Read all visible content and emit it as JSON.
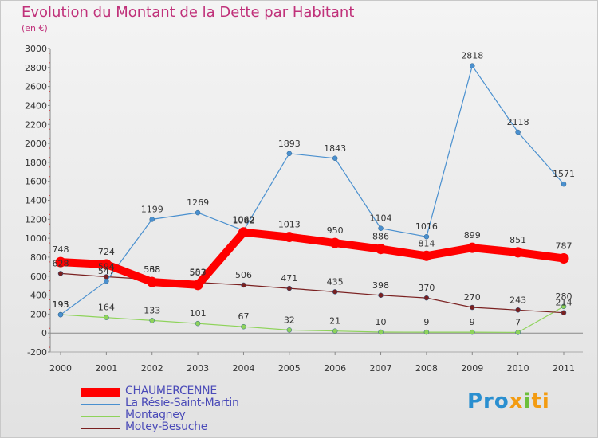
{
  "title": "Evolution du Montant de la Dette par Habitant",
  "subtitle": "(en €)",
  "logo": {
    "part1": "Pro",
    "part2": "x",
    "part3": "i",
    "part4": "ti"
  },
  "chart_data": {
    "type": "line",
    "title": "Evolution du Montant de la Dette par Habitant",
    "ylabel": "(en €)",
    "xlabel": "",
    "x": [
      "2000",
      "2001",
      "2002",
      "2003",
      "2004",
      "2005",
      "2006",
      "2007",
      "2008",
      "2009",
      "2010",
      "2011"
    ],
    "yticks": [
      "-200",
      "0",
      "200",
      "400",
      "600",
      "800",
      "1000",
      "1200",
      "1400",
      "1600",
      "1800",
      "2000",
      "2200",
      "2400",
      "2600",
      "2800",
      "3000"
    ],
    "ylim": [
      -200,
      3000
    ],
    "grid": false,
    "legend_position": "bottom-left",
    "series": [
      {
        "name": "CHAUMERCENNE",
        "color": "#ff0000",
        "values": [
          748,
          724,
          538,
          507,
          1062,
          1013,
          950,
          886,
          814,
          899,
          851,
          787
        ],
        "labels": [
          "748",
          "724",
          "538",
          "507",
          "1062",
          "1013",
          "950",
          "886",
          "814",
          "899",
          "851",
          "787"
        ]
      },
      {
        "name": "La Résie-Saint-Martin",
        "color": "#4a90cf",
        "values": [
          193,
          547,
          1199,
          1269,
          1082,
          1893,
          1843,
          1104,
          1016,
          2818,
          2118,
          1571
        ],
        "labels": [
          "193",
          "547",
          "1199",
          "1269",
          "1082",
          "1893",
          "1843",
          "1104",
          "1016",
          "2818",
          "2118",
          "1571"
        ]
      },
      {
        "name": "Montagney",
        "color": "#8ed35a",
        "values": [
          195,
          164,
          133,
          101,
          67,
          32,
          21,
          10,
          9,
          9,
          7,
          280
        ],
        "labels": [
          "195",
          "164",
          "133",
          "101",
          "67",
          "32",
          "21",
          "10",
          "9",
          "9",
          "7",
          "280"
        ]
      },
      {
        "name": "Motey-Besuche",
        "color": "#7a2020",
        "values": [
          628,
          594,
          565,
          533,
          506,
          471,
          435,
          398,
          370,
          270,
          243,
          214
        ],
        "labels": [
          "628",
          "594",
          "565",
          "533",
          "506",
          "471",
          "435",
          "398",
          "370",
          "270",
          "243",
          "214"
        ]
      }
    ]
  }
}
